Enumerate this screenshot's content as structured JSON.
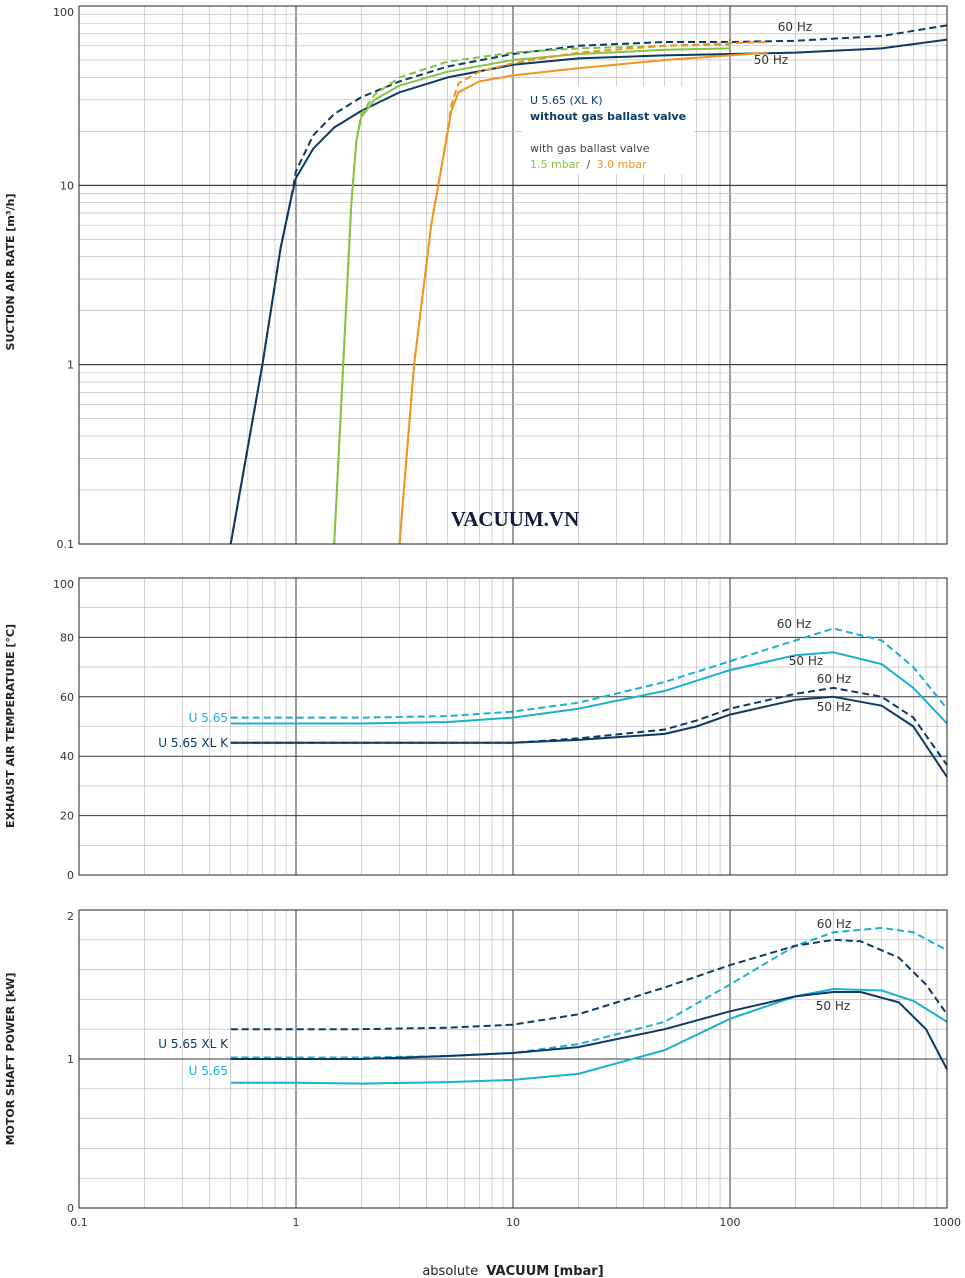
{
  "colors": {
    "navy": "#0c3a64",
    "cyan": "#1ab1cf",
    "green": "#84c441",
    "orange": "#f4931e",
    "grid_major": "#3a3a3a",
    "grid_minor": "#b5b5b5"
  },
  "watermark": "VACUUM.VN",
  "x_axis": {
    "label_prefix": "absolute",
    "label_bold": "VACUUM  [mbar]",
    "ticks": [
      "0.1",
      "1",
      "10",
      "100",
      "1000"
    ]
  },
  "legend": {
    "line1": "U 5.65 (XL K)",
    "line2": "without gas ballast valve",
    "line3": "with gas ballast valve",
    "gb_a": "1.5 mbar",
    "sep": "/",
    "gb_b": "3.0 mbar"
  },
  "chart_data": [
    {
      "type": "line",
      "ylabel": "SUCTION AIR RATE  [m³/h]",
      "xscale": "log",
      "yscale": "log",
      "xlim": [
        0.1,
        1000
      ],
      "ylim": [
        0.1,
        100
      ],
      "ticks": [
        "0.1",
        "1",
        "10",
        "100"
      ],
      "annotations": [
        "60 Hz",
        "50 Hz"
      ],
      "series": [
        {
          "color": "navy",
          "dash": false,
          "x": [
            0.5,
            0.7,
            0.85,
            0.95,
            1,
            1.2,
            1.5,
            2,
            3,
            5,
            10,
            20,
            50,
            100,
            200,
            500,
            1000
          ],
          "y": [
            0.1,
            1,
            4.5,
            8.5,
            11,
            16,
            21,
            26,
            33,
            40,
            47,
            51,
            53,
            54,
            55,
            58,
            65
          ]
        },
        {
          "color": "navy",
          "dash": true,
          "x": [
            0.5,
            0.7,
            0.85,
            0.95,
            1,
            1.2,
            1.5,
            2,
            3,
            5,
            10,
            20,
            50,
            100,
            200,
            500,
            1000
          ],
          "y": [
            0.1,
            1,
            4.5,
            8.5,
            12,
            19,
            25,
            31,
            38,
            46,
            54,
            60,
            63,
            63,
            64,
            68,
            78
          ]
        },
        {
          "color": "green",
          "dash": false,
          "x": [
            1.5,
            1.65,
            1.8,
            1.9,
            2,
            2.3,
            3,
            5,
            10,
            20,
            50,
            100
          ],
          "y": [
            0.1,
            1,
            8,
            18,
            24,
            30,
            36,
            43,
            50,
            54,
            57,
            58
          ]
        },
        {
          "color": "green",
          "dash": true,
          "x": [
            1.5,
            1.65,
            1.8,
            1.9,
            2,
            2.3,
            3,
            5,
            10,
            20,
            50,
            100
          ],
          "y": [
            0.1,
            1,
            8,
            18,
            25,
            32,
            40,
            49,
            55,
            58,
            60,
            61
          ]
        },
        {
          "color": "orange",
          "dash": false,
          "x": [
            3,
            3.5,
            4.2,
            4.8,
            5.2,
            5.6,
            7,
            10,
            20,
            50,
            100,
            150
          ],
          "y": [
            0.1,
            1,
            6,
            15,
            26,
            33,
            38,
            41,
            45,
            50,
            53,
            55
          ]
        },
        {
          "color": "orange",
          "dash": true,
          "x": [
            3,
            3.5,
            4.2,
            4.8,
            5.2,
            5.6,
            7,
            10,
            20,
            50,
            100,
            150
          ],
          "y": [
            0.1,
            1,
            6,
            15,
            28,
            37,
            43,
            48,
            55,
            60,
            62,
            63
          ]
        }
      ]
    },
    {
      "type": "line",
      "ylabel": "EXHAUST AIR TEMPERATURE  [°C]",
      "xscale": "log",
      "yscale": "linear",
      "xlim": [
        0.1,
        1000
      ],
      "ylim": [
        0,
        100
      ],
      "ticks": [
        "0",
        "20",
        "40",
        "60",
        "80",
        "100"
      ],
      "annotations": [
        "60 Hz",
        "50 Hz",
        "60 Hz",
        "50 Hz"
      ],
      "series_labels": [
        "U 5.65",
        "U 5.65 XL K"
      ],
      "series": [
        {
          "name": "U 5.65",
          "color": "cyan",
          "dash": false,
          "x": [
            0.5,
            1,
            2,
            5,
            10,
            20,
            50,
            100,
            200,
            300,
            500,
            700,
            1000
          ],
          "y": [
            51,
            51,
            51,
            51.5,
            53,
            56,
            62,
            69,
            74,
            75,
            71,
            63,
            51
          ]
        },
        {
          "name": "U 5.65",
          "color": "cyan",
          "dash": true,
          "x": [
            0.5,
            1,
            2,
            5,
            10,
            20,
            50,
            100,
            200,
            300,
            500,
            700,
            1000
          ],
          "y": [
            53,
            53,
            53,
            53.5,
            55,
            58,
            65,
            72,
            79,
            83,
            79,
            70,
            56
          ]
        },
        {
          "name": "U 5.65 XL K",
          "color": "navy",
          "dash": false,
          "x": [
            0.5,
            1,
            2,
            5,
            10,
            20,
            50,
            70,
            100,
            200,
            300,
            500,
            700,
            1000
          ],
          "y": [
            44.5,
            44.5,
            44.5,
            44.5,
            44.5,
            45.5,
            47.5,
            50,
            54,
            59,
            60,
            57,
            50,
            33
          ]
        },
        {
          "name": "U 5.65 XL K",
          "color": "navy",
          "dash": true,
          "x": [
            0.5,
            1,
            2,
            5,
            10,
            20,
            50,
            70,
            100,
            200,
            300,
            500,
            700,
            1000
          ],
          "y": [
            44.5,
            44.5,
            44.5,
            44.5,
            44.5,
            46,
            49,
            52,
            56,
            61,
            63,
            60,
            53,
            37
          ]
        }
      ]
    },
    {
      "type": "line",
      "ylabel": "MOTOR SHAFT POWER  [kW]",
      "xscale": "log",
      "yscale": "linear",
      "xlim": [
        0.1,
        1000
      ],
      "ylim": [
        0,
        2
      ],
      "ticks": [
        "0",
        "1",
        "2"
      ],
      "annotations": [
        "60 Hz",
        "50 Hz"
      ],
      "series_labels": [
        "U 5.65 XL K",
        "U 5.65"
      ],
      "series": [
        {
          "name": "U 5.65",
          "color": "cyan",
          "dash": false,
          "x": [
            0.5,
            1,
            2,
            5,
            10,
            20,
            50,
            100,
            200,
            300,
            500,
            700,
            1000
          ],
          "y": [
            0.84,
            0.84,
            0.835,
            0.845,
            0.86,
            0.9,
            1.06,
            1.27,
            1.42,
            1.47,
            1.46,
            1.39,
            1.25
          ]
        },
        {
          "name": "U 5.65",
          "color": "cyan",
          "dash": true,
          "x": [
            0.5,
            1,
            2,
            5,
            10,
            20,
            50,
            100,
            200,
            300,
            500,
            700,
            1000
          ],
          "y": [
            1.01,
            1.01,
            1.01,
            1.02,
            1.04,
            1.1,
            1.25,
            1.5,
            1.76,
            1.85,
            1.88,
            1.85,
            1.73
          ]
        },
        {
          "name": "U 5.65 XL K",
          "color": "navy",
          "dash": false,
          "x": [
            0.5,
            1,
            2,
            5,
            10,
            20,
            50,
            100,
            200,
            300,
            400,
            600,
            800,
            1000
          ],
          "y": [
            1.0,
            1.0,
            1.0,
            1.02,
            1.04,
            1.08,
            1.2,
            1.32,
            1.42,
            1.45,
            1.45,
            1.38,
            1.2,
            0.93
          ]
        },
        {
          "name": "U 5.65 XL K",
          "color": "navy",
          "dash": true,
          "x": [
            0.5,
            1,
            2,
            5,
            10,
            20,
            50,
            100,
            200,
            300,
            400,
            600,
            800,
            1000
          ],
          "y": [
            1.2,
            1.2,
            1.2,
            1.21,
            1.23,
            1.3,
            1.48,
            1.63,
            1.76,
            1.8,
            1.79,
            1.68,
            1.5,
            1.3
          ]
        }
      ]
    }
  ]
}
